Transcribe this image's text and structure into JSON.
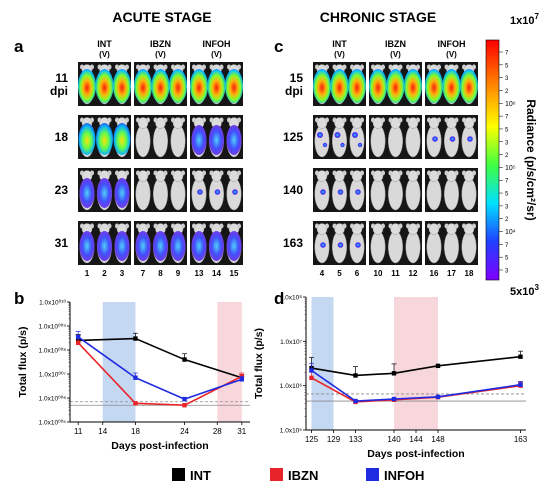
{
  "panel_letters": {
    "a": "a",
    "b": "b",
    "c": "c",
    "d": "d"
  },
  "stage_titles": {
    "acute": "ACUTE STAGE",
    "chronic": "CHRONIC STAGE"
  },
  "acute_groups": [
    {
      "line1": "INT",
      "line2": "(V)"
    },
    {
      "line1": "IBZN",
      "line2": "(V)"
    },
    {
      "line1": "INFOH",
      "line2": "(V)"
    }
  ],
  "chronic_groups": [
    {
      "line1": "INT",
      "line2": "(V)"
    },
    {
      "line1": "IBZN",
      "line2": "(V)"
    },
    {
      "line1": "INFOH",
      "line2": "(V)"
    }
  ],
  "acute_rows": [
    {
      "label": "11",
      "sublabel": "dpi"
    },
    {
      "label": "18",
      "sublabel": ""
    },
    {
      "label": "23",
      "sublabel": ""
    },
    {
      "label": "31",
      "sublabel": ""
    }
  ],
  "chronic_rows": [
    {
      "label": "15",
      "sublabel": "dpi"
    },
    {
      "label": "125",
      "sublabel": ""
    },
    {
      "label": "140",
      "sublabel": ""
    },
    {
      "label": "163",
      "sublabel": ""
    }
  ],
  "acute_mouse_numbers": [
    "1",
    "2",
    "3",
    "7",
    "8",
    "9",
    "13",
    "14",
    "15"
  ],
  "chronic_mouse_numbers": [
    "4",
    "5",
    "6",
    "10",
    "11",
    "12",
    "16",
    "17",
    "18"
  ],
  "colorbar": {
    "top_label": "1x10",
    "top_exp": "7",
    "bottom_label": "5x10",
    "bottom_exp": "3",
    "title": "Radiance (p/s/cm²/sr)",
    "minor_ticks": [
      "7",
      "5",
      "3",
      "2",
      "10⁶",
      "7",
      "5",
      "3",
      "2",
      "10⁵",
      "7",
      "5",
      "3",
      "2",
      "10⁴",
      "7",
      "5",
      "3"
    ]
  },
  "colors": {
    "INT": "#000000",
    "IBZN": "#e8242a",
    "INFOH": "#1f2be0",
    "blue_band": "#c4d8f2",
    "red_band": "#f8d7dc"
  },
  "legend": [
    {
      "label": "INT",
      "color": "#000000"
    },
    {
      "label": "IBZN",
      "color": "#e8242a"
    },
    {
      "label": "INFOH",
      "color": "#1f2be0"
    }
  ],
  "chart_data": [
    {
      "type": "line",
      "panel": "b",
      "xlabel": "Days post-infection",
      "ylabel": "Total flux (p/s)",
      "x_ticks": [
        11,
        14,
        18,
        24,
        28,
        31
      ],
      "y_ticks": [
        "1.0x10⁰¹⁰",
        "1.0x10⁰⁰⁹",
        "1.0x10⁰⁰⁸",
        "1.0x10⁰⁰⁷",
        "1.0x10⁰⁰⁶",
        "1.0x10⁰⁰⁵"
      ],
      "y_scale": "log",
      "ylim": [
        100000,
        10000000000
      ],
      "xlim": [
        10,
        32
      ],
      "shaded_regions": [
        {
          "from": 14,
          "to": 18,
          "color": "blue"
        },
        {
          "from": 28,
          "to": 31,
          "color": "red"
        }
      ],
      "reference_lines": [
        700000,
        500000
      ],
      "series": [
        {
          "name": "INT",
          "x": [
            11,
            18,
            24,
            31
          ],
          "y": [
            250000000,
            300000000,
            40000000,
            7000000
          ],
          "err": [
            200000000,
            200000000,
            30000000,
            2500000
          ]
        },
        {
          "name": "IBZN",
          "x": [
            11,
            18,
            24,
            31
          ],
          "y": [
            200000000,
            600000,
            500000,
            8000000
          ],
          "err": [
            200000000,
            0,
            0,
            3000000
          ]
        },
        {
          "name": "INFOH",
          "x": [
            11,
            18,
            24,
            31
          ],
          "y": [
            350000000,
            7000000,
            900000,
            6000000
          ],
          "err": [
            250000000,
            4000000,
            0,
            2000000
          ]
        }
      ]
    },
    {
      "type": "line",
      "panel": "d",
      "xlabel": "Days post-infection",
      "ylabel": "Total flux (p/s)",
      "x_ticks": [
        125,
        129,
        133,
        140,
        144,
        148,
        163
      ],
      "y_ticks": [
        "1.0x10⁸",
        "1.0x10⁷",
        "1.0x10⁶",
        "1.0x10⁵"
      ],
      "y_scale": "log",
      "ylim": [
        100000,
        100000000
      ],
      "xlim": [
        124,
        164
      ],
      "shaded_regions": [
        {
          "from": 125,
          "to": 129,
          "color": "blue"
        },
        {
          "from": 140,
          "to": 148,
          "color": "red"
        }
      ],
      "reference_lines": [
        650000,
        450000
      ],
      "series": [
        {
          "name": "INT",
          "x": [
            125,
            133,
            140,
            148,
            163
          ],
          "y": [
            2500000,
            1700000,
            1900000,
            2800000,
            4500000
          ],
          "err": [
            1800000,
            1000000,
            1200000,
            0,
            1500000
          ]
        },
        {
          "name": "IBZN",
          "x": [
            125,
            133,
            140,
            148,
            163
          ],
          "y": [
            1500000,
            430000,
            480000,
            550000,
            1000000
          ],
          "err": [
            600000,
            0,
            0,
            0,
            200000
          ]
        },
        {
          "name": "INFOH",
          "x": [
            125,
            133,
            140,
            148,
            163
          ],
          "y": [
            2200000,
            450000,
            500000,
            560000,
            1050000
          ],
          "err": [
            1000000,
            0,
            0,
            0,
            200000
          ]
        }
      ]
    }
  ]
}
